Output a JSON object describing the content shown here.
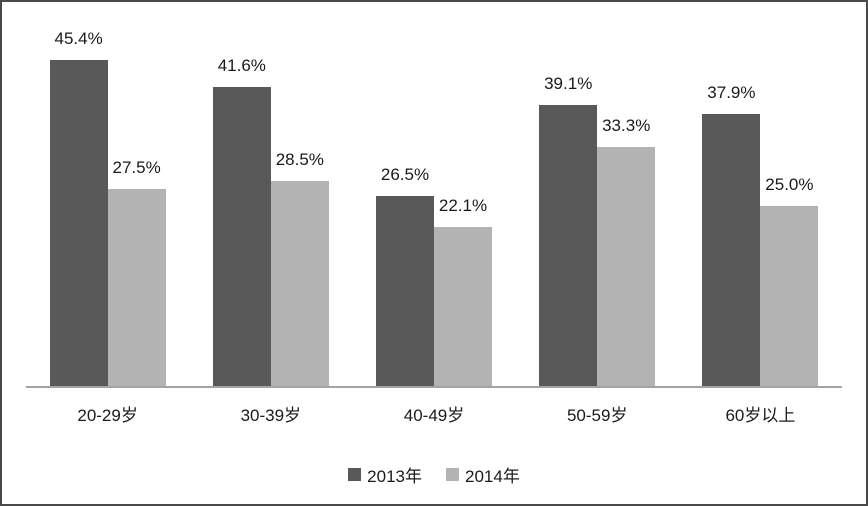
{
  "chart_data": {
    "type": "bar",
    "categories": [
      "20-29岁",
      "30-39岁",
      "40-49岁",
      "50-59岁",
      "60岁以上"
    ],
    "series": [
      {
        "name": "2013年",
        "color": "#595959",
        "values": [
          45.4,
          41.6,
          26.5,
          39.1,
          37.9
        ]
      },
      {
        "name": "2014年",
        "color": "#b3b3b3",
        "values": [
          27.5,
          28.5,
          22.1,
          33.3,
          25.0
        ]
      }
    ],
    "data_labels": {
      "2013年": [
        "45.4%",
        "41.6%",
        "26.5%",
        "39.1%",
        "37.9%"
      ],
      "2014年": [
        "27.5%",
        "28.5%",
        "22.1%",
        "33.3%",
        "25.0%"
      ]
    },
    "title": "",
    "xlabel": "",
    "ylabel": "",
    "ylim": [
      0,
      50
    ],
    "grid": false,
    "legend_position": "bottom",
    "legend_entries": [
      "2013年",
      "2014年"
    ],
    "colors": {
      "series_2013": "#595959",
      "series_2014": "#b3b3b3",
      "axis_line": "#a3a3a3",
      "frame_border": "#4a4a4a",
      "background": "#ffffff",
      "text": "#1a1a1a"
    }
  }
}
